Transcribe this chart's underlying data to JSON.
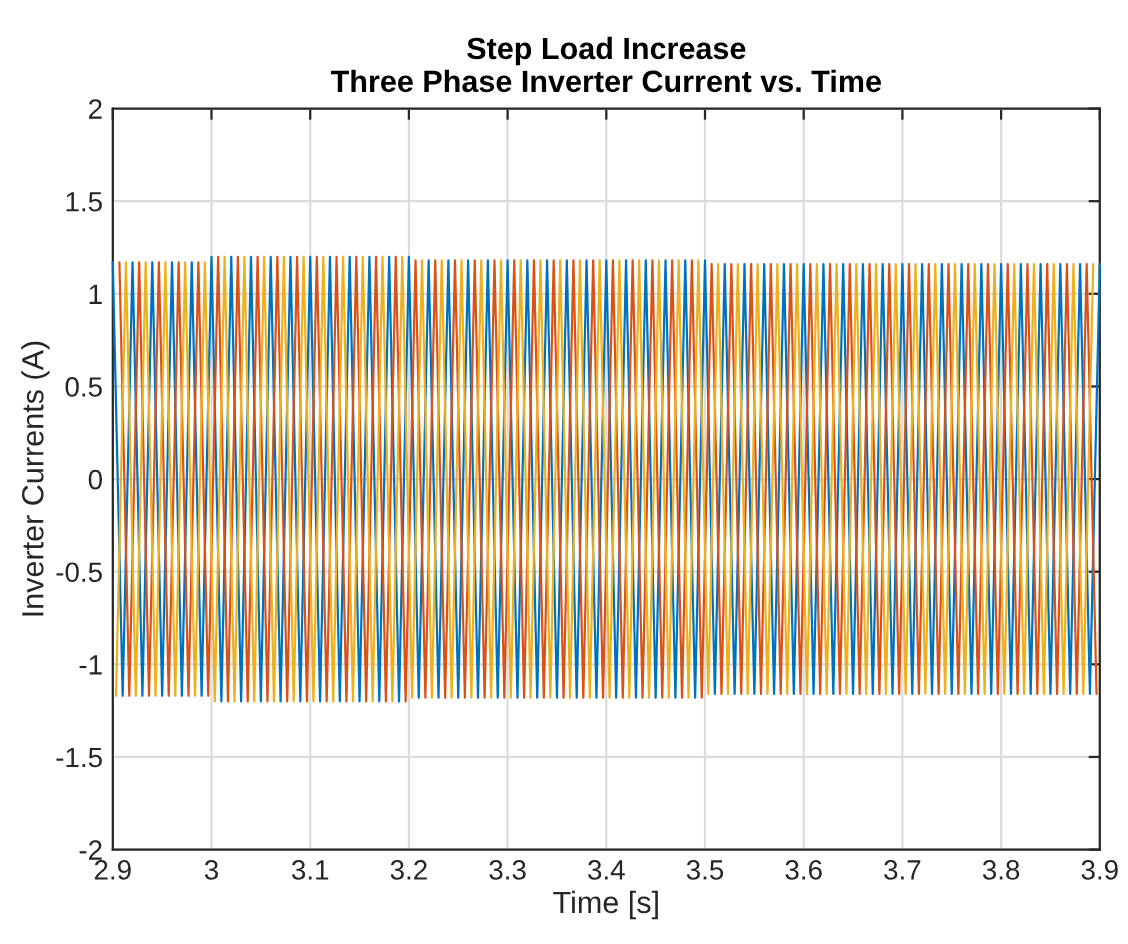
{
  "chart_data": {
    "type": "line",
    "title": "Step Load Increase\nThree Phase Inverter Current vs. Time",
    "xlabel": "Time [s]",
    "ylabel": "Inverter Currents (A)",
    "xlim": [
      2.9,
      3.9
    ],
    "xticks": [
      2.9,
      3,
      3.1,
      3.2,
      3.3,
      3.4,
      3.5,
      3.6,
      3.7,
      3.8,
      3.9
    ],
    "ylim": [
      -2,
      2
    ],
    "yticks": [
      -2,
      -1.5,
      -1,
      -0.5,
      0,
      0.5,
      1,
      1.5,
      2
    ],
    "grid": true,
    "legend": false,
    "series": [
      {
        "color": "#0072bd",
        "x": [
          2.9,
          2.91,
          2.92,
          2.93,
          2.94,
          2.95,
          2.96,
          2.97,
          2.98,
          2.99,
          3.0,
          3.01,
          3.02,
          3.03,
          3.04,
          3.05,
          3.06,
          3.07,
          3.08,
          3.09,
          3.1,
          3.11,
          3.12,
          3.13,
          3.14,
          3.15,
          3.16,
          3.17,
          3.18,
          3.19,
          3.2,
          3.21,
          3.22,
          3.23,
          3.24,
          3.25,
          3.26,
          3.27,
          3.28,
          3.29,
          3.3,
          3.31,
          3.32,
          3.33,
          3.34,
          3.35,
          3.36,
          3.37,
          3.38,
          3.39,
          3.4,
          3.41,
          3.42,
          3.43,
          3.44,
          3.45,
          3.46,
          3.47,
          3.48,
          3.49,
          3.5,
          3.51,
          3.52,
          3.53,
          3.54,
          3.55,
          3.56,
          3.57,
          3.58,
          3.59,
          3.6,
          3.61,
          3.62,
          3.63,
          3.64,
          3.65,
          3.66,
          3.67,
          3.68,
          3.69,
          3.7,
          3.71,
          3.72,
          3.73,
          3.74,
          3.75,
          3.76,
          3.77,
          3.78,
          3.79,
          3.8,
          3.81,
          3.82,
          3.83,
          3.84,
          3.85,
          3.86,
          3.87,
          3.88,
          3.89,
          3.9
        ],
        "values": [
          1.17,
          -1.17,
          1.17,
          -1.17,
          1.17,
          -1.17,
          1.17,
          -1.17,
          1.17,
          -1.17,
          1.2,
          -1.2,
          1.2,
          -1.2,
          1.2,
          -1.2,
          1.2,
          -1.2,
          1.2,
          -1.2,
          1.2,
          -1.2,
          1.2,
          -1.2,
          1.2,
          -1.2,
          1.2,
          -1.2,
          1.2,
          -1.2,
          1.2,
          -1.18,
          1.18,
          -1.18,
          1.18,
          -1.18,
          1.18,
          -1.18,
          1.18,
          -1.18,
          1.18,
          -1.18,
          1.18,
          -1.18,
          1.18,
          -1.18,
          1.18,
          -1.18,
          1.18,
          -1.18,
          1.18,
          -1.18,
          1.18,
          -1.18,
          1.18,
          -1.18,
          1.18,
          -1.18,
          1.18,
          -1.18,
          1.18,
          -1.16,
          1.16,
          -1.16,
          1.16,
          -1.16,
          1.16,
          -1.16,
          1.16,
          -1.16,
          1.16,
          -1.16,
          1.16,
          -1.16,
          1.16,
          -1.16,
          1.16,
          -1.16,
          1.16,
          -1.16,
          1.16,
          -1.16,
          1.16,
          -1.16,
          1.16,
          -1.16,
          1.16,
          -1.16,
          1.16,
          -1.16,
          1.16,
          -1.16,
          1.16,
          -1.16,
          1.16,
          -1.16,
          1.16,
          -1.16,
          1.16,
          -1.16,
          1.16
        ]
      },
      {
        "color": "#d95319",
        "x": [
          2.9067,
          2.9167,
          2.9267,
          2.9367,
          2.9467,
          2.9567,
          2.9667,
          2.9767,
          2.9867,
          2.9967,
          3.0067,
          3.0167,
          3.0267,
          3.0367,
          3.0467,
          3.0567,
          3.0667,
          3.0767,
          3.0867,
          3.0967,
          3.1067,
          3.1167,
          3.1267,
          3.1367,
          3.1467,
          3.1567,
          3.1667,
          3.1767,
          3.1867,
          3.1967,
          3.2067,
          3.2167,
          3.2267,
          3.2367,
          3.2467,
          3.2567,
          3.2667,
          3.2767,
          3.2867,
          3.2967,
          3.3067,
          3.3167,
          3.3267,
          3.3367,
          3.3467,
          3.3567,
          3.3667,
          3.3767,
          3.3867,
          3.3967,
          3.4067,
          3.4167,
          3.4267,
          3.4367,
          3.4467,
          3.4567,
          3.4667,
          3.4767,
          3.4867,
          3.4967,
          3.5067,
          3.5167,
          3.5267,
          3.5367,
          3.5467,
          3.5567,
          3.5667,
          3.5767,
          3.5867,
          3.5967,
          3.6067,
          3.6167,
          3.6267,
          3.6367,
          3.6467,
          3.6567,
          3.6667,
          3.6767,
          3.6867,
          3.6967,
          3.7067,
          3.7167,
          3.7267,
          3.7367,
          3.7467,
          3.7567,
          3.7667,
          3.7767,
          3.7867,
          3.7967,
          3.8067,
          3.8167,
          3.8267,
          3.8367,
          3.8467,
          3.8567,
          3.8667,
          3.8767,
          3.8867,
          3.8967
        ],
        "values": [
          1.17,
          -1.17,
          1.17,
          -1.17,
          1.17,
          -1.17,
          1.17,
          -1.17,
          1.17,
          -1.17,
          1.2,
          -1.2,
          1.2,
          -1.2,
          1.2,
          -1.2,
          1.2,
          -1.2,
          1.2,
          -1.2,
          1.2,
          -1.2,
          1.2,
          -1.2,
          1.2,
          -1.2,
          1.2,
          -1.2,
          1.2,
          -1.2,
          1.18,
          -1.18,
          1.18,
          -1.18,
          1.18,
          -1.18,
          1.18,
          -1.18,
          1.18,
          -1.18,
          1.18,
          -1.18,
          1.18,
          -1.18,
          1.18,
          -1.18,
          1.18,
          -1.18,
          1.18,
          -1.18,
          1.18,
          -1.18,
          1.18,
          -1.18,
          1.18,
          -1.18,
          1.18,
          -1.18,
          1.18,
          -1.18,
          1.16,
          -1.16,
          1.16,
          -1.16,
          1.16,
          -1.16,
          1.16,
          -1.16,
          1.16,
          -1.16,
          1.16,
          -1.16,
          1.16,
          -1.16,
          1.16,
          -1.16,
          1.16,
          -1.16,
          1.16,
          -1.16,
          1.16,
          -1.16,
          1.16,
          -1.16,
          1.16,
          -1.16,
          1.16,
          -1.16,
          1.16,
          -1.16,
          1.16,
          -1.16,
          1.16,
          -1.16,
          1.16,
          -1.16,
          1.16,
          -1.16,
          1.16,
          -1.16
        ]
      },
      {
        "color": "#edb120",
        "x": [
          2.9033,
          2.9133,
          2.9233,
          2.9333,
          2.9433,
          2.9533,
          2.9633,
          2.9733,
          2.9833,
          2.9933,
          3.0033,
          3.0133,
          3.0233,
          3.0333,
          3.0433,
          3.0533,
          3.0633,
          3.0733,
          3.0833,
          3.0933,
          3.1033,
          3.1133,
          3.1233,
          3.1333,
          3.1433,
          3.1533,
          3.1633,
          3.1733,
          3.1833,
          3.1933,
          3.2033,
          3.2133,
          3.2233,
          3.2333,
          3.2433,
          3.2533,
          3.2633,
          3.2733,
          3.2833,
          3.2933,
          3.3033,
          3.3133,
          3.3233,
          3.3333,
          3.3433,
          3.3533,
          3.3633,
          3.3733,
          3.3833,
          3.3933,
          3.4033,
          3.4133,
          3.4233,
          3.4333,
          3.4433,
          3.4533,
          3.4633,
          3.4733,
          3.4833,
          3.4933,
          3.5033,
          3.5133,
          3.5233,
          3.5333,
          3.5433,
          3.5533,
          3.5633,
          3.5733,
          3.5833,
          3.5933,
          3.6033,
          3.6133,
          3.6233,
          3.6333,
          3.6433,
          3.6533,
          3.6633,
          3.6733,
          3.6833,
          3.6933,
          3.7033,
          3.7133,
          3.7233,
          3.7333,
          3.7433,
          3.7533,
          3.7633,
          3.7733,
          3.7833,
          3.7933,
          3.8033,
          3.8133,
          3.8233,
          3.8333,
          3.8433,
          3.8533,
          3.8633,
          3.8733,
          3.8833,
          3.8933
        ],
        "values": [
          -1.17,
          1.17,
          -1.17,
          1.17,
          -1.17,
          1.17,
          -1.17,
          1.17,
          -1.17,
          1.17,
          -1.2,
          1.2,
          -1.2,
          1.2,
          -1.2,
          1.2,
          -1.2,
          1.2,
          -1.2,
          1.2,
          -1.2,
          1.2,
          -1.2,
          1.2,
          -1.2,
          1.2,
          -1.2,
          1.2,
          -1.2,
          1.2,
          -1.18,
          1.18,
          -1.18,
          1.18,
          -1.18,
          1.18,
          -1.18,
          1.18,
          -1.18,
          1.18,
          -1.18,
          1.18,
          -1.18,
          1.18,
          -1.18,
          1.18,
          -1.18,
          1.18,
          -1.18,
          1.18,
          -1.18,
          1.18,
          -1.18,
          1.18,
          -1.18,
          1.18,
          -1.18,
          1.18,
          -1.18,
          1.18,
          -1.16,
          1.16,
          -1.16,
          1.16,
          -1.16,
          1.16,
          -1.16,
          1.16,
          -1.16,
          1.16,
          -1.16,
          1.16,
          -1.16,
          1.16,
          -1.16,
          1.16,
          -1.16,
          1.16,
          -1.16,
          1.16,
          -1.16,
          1.16,
          -1.16,
          1.16,
          -1.16,
          1.16,
          -1.16,
          1.16,
          -1.16,
          1.16,
          -1.16,
          1.16,
          -1.16,
          1.16,
          -1.16,
          1.16,
          -1.16,
          1.16,
          -1.16,
          1.16
        ]
      }
    ]
  }
}
